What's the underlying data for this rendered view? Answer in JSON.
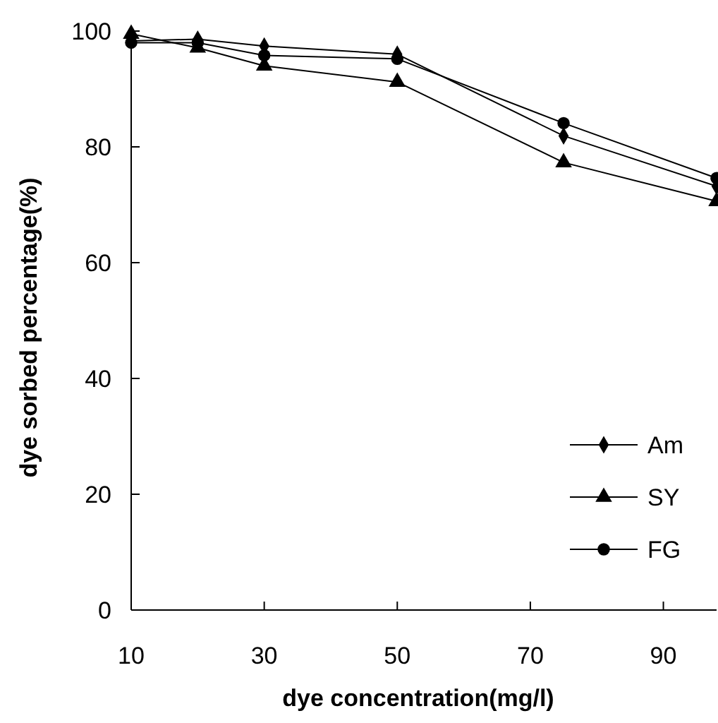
{
  "chart_data": {
    "type": "line",
    "xlabel": "dye concentration(mg/l)",
    "ylabel": "dye sorbed percentage(%)",
    "x": [
      10,
      20,
      30,
      50,
      75,
      98
    ],
    "xlim": [
      10,
      98
    ],
    "xticks": [
      10,
      30,
      50,
      70,
      90
    ],
    "ylim": [
      0,
      100
    ],
    "yticks": [
      0,
      20,
      40,
      60,
      80,
      100
    ],
    "legend": "bottom right",
    "grid": false,
    "series": [
      {
        "name": "Am",
        "color": "#000000",
        "marker": "diamond",
        "values": [
          98.3,
          98.6,
          97.4,
          96.0,
          81.9,
          73.2
        ]
      },
      {
        "name": "SY",
        "color": "#000000",
        "marker": "triangle",
        "values": [
          99.5,
          97.1,
          94.0,
          91.2,
          77.3,
          70.6
        ]
      },
      {
        "name": "FG",
        "color": "#000000",
        "marker": "circle",
        "values": [
          98.0,
          98.0,
          95.8,
          95.2,
          84.1,
          74.6
        ]
      }
    ]
  }
}
